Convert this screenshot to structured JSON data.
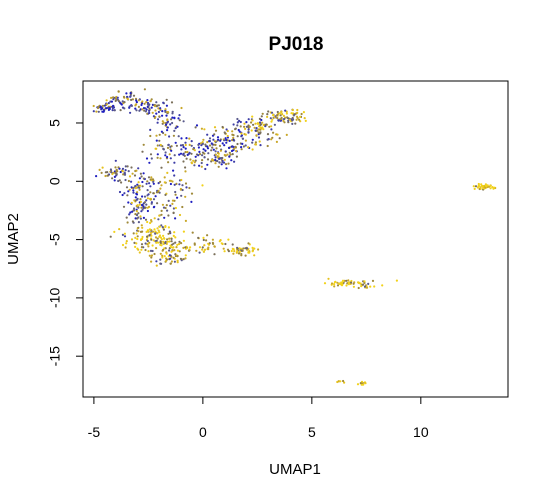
{
  "chart_data": {
    "type": "scatter",
    "title": "PJ018",
    "xlabel": "UMAP1",
    "ylabel": "UMAP2",
    "xlim": [
      -5.5,
      14
    ],
    "ylim": [
      -18.5,
      8.6
    ],
    "xticks": [
      -5,
      0,
      5,
      10
    ],
    "xtick_labels": [
      "-5",
      "0",
      "5",
      "10"
    ],
    "yticks": [
      -15,
      -10,
      -5,
      0,
      5
    ],
    "ytick_labels": [
      "-15",
      "-10",
      "-5",
      "0",
      "5"
    ],
    "grid": false,
    "legend": "none",
    "colors": [
      "#1f1fbf",
      "#3d3da6",
      "#5a5a8c",
      "#7a6f5a",
      "#a08a3a",
      "#c9a82a",
      "#e6c21e",
      "#f2d21a"
    ],
    "clusters": [
      {
        "cx": -4.5,
        "cy": 6.3,
        "sx": 0.25,
        "sy": 0.2,
        "n": 40,
        "mix": 0.3
      },
      {
        "cx": -3.6,
        "cy": 7.1,
        "sx": 0.4,
        "sy": 0.3,
        "n": 45,
        "mix": 0.35
      },
      {
        "cx": -2.6,
        "cy": 6.4,
        "sx": 0.55,
        "sy": 0.3,
        "n": 70,
        "mix": 0.3
      },
      {
        "cx": -1.6,
        "cy": 5.2,
        "sx": 0.3,
        "sy": 0.55,
        "n": 45,
        "mix": 0.3
      },
      {
        "cx": -1.8,
        "cy": 3.0,
        "sx": 0.5,
        "sy": 0.9,
        "n": 45,
        "mix": 0.35
      },
      {
        "cx": -0.6,
        "cy": 2.6,
        "sx": 0.5,
        "sy": 0.6,
        "n": 60,
        "mix": 0.35
      },
      {
        "cx": 0.6,
        "cy": 2.0,
        "sx": 0.5,
        "sy": 0.5,
        "n": 55,
        "mix": 0.45
      },
      {
        "cx": 1.2,
        "cy": 3.5,
        "sx": 0.8,
        "sy": 0.6,
        "n": 120,
        "mix": 0.4
      },
      {
        "cx": 2.5,
        "cy": 4.6,
        "sx": 0.7,
        "sy": 0.5,
        "n": 85,
        "mix": 0.55
      },
      {
        "cx": 3.7,
        "cy": 5.6,
        "sx": 0.35,
        "sy": 0.3,
        "n": 55,
        "mix": 0.55
      },
      {
        "cx": 4.3,
        "cy": 5.4,
        "sx": 0.2,
        "sy": 0.3,
        "n": 20,
        "mix": 0.75
      },
      {
        "cx": -3.9,
        "cy": 0.8,
        "sx": 0.5,
        "sy": 0.3,
        "n": 50,
        "mix": 0.4
      },
      {
        "cx": -3.0,
        "cy": -0.3,
        "sx": 0.5,
        "sy": 0.6,
        "n": 55,
        "mix": 0.4
      },
      {
        "cx": -2.8,
        "cy": -2.2,
        "sx": 0.5,
        "sy": 0.9,
        "n": 90,
        "mix": 0.4
      },
      {
        "cx": -1.4,
        "cy": -1.2,
        "sx": 0.5,
        "sy": 1.2,
        "n": 60,
        "mix": 0.45
      },
      {
        "cx": -2.4,
        "cy": -4.3,
        "sx": 0.5,
        "sy": 0.5,
        "n": 50,
        "mix": 0.6
      },
      {
        "cx": -1.9,
        "cy": -5.4,
        "sx": 0.8,
        "sy": 0.6,
        "n": 130,
        "mix": 0.72
      },
      {
        "cx": -1.5,
        "cy": -6.7,
        "sx": 0.4,
        "sy": 0.3,
        "n": 35,
        "mix": 0.6
      },
      {
        "cx": 0.2,
        "cy": -5.5,
        "sx": 0.6,
        "sy": 0.35,
        "n": 40,
        "mix": 0.75
      },
      {
        "cx": 1.8,
        "cy": -5.9,
        "sx": 0.35,
        "sy": 0.25,
        "n": 45,
        "mix": 0.7
      },
      {
        "cx": 12.8,
        "cy": -0.5,
        "sx": 0.25,
        "sy": 0.12,
        "n": 40,
        "mix": 0.88
      },
      {
        "cx": 6.6,
        "cy": -8.7,
        "sx": 0.55,
        "sy": 0.15,
        "n": 50,
        "mix": 0.82
      },
      {
        "cx": 7.4,
        "cy": -9.0,
        "sx": 0.2,
        "sy": 0.1,
        "n": 12,
        "mix": 0.7
      },
      {
        "cx": 6.3,
        "cy": -17.2,
        "sx": 0.1,
        "sy": 0.06,
        "n": 6,
        "mix": 0.95
      },
      {
        "cx": 7.3,
        "cy": -17.3,
        "sx": 0.12,
        "sy": 0.08,
        "n": 12,
        "mix": 0.85
      }
    ]
  }
}
